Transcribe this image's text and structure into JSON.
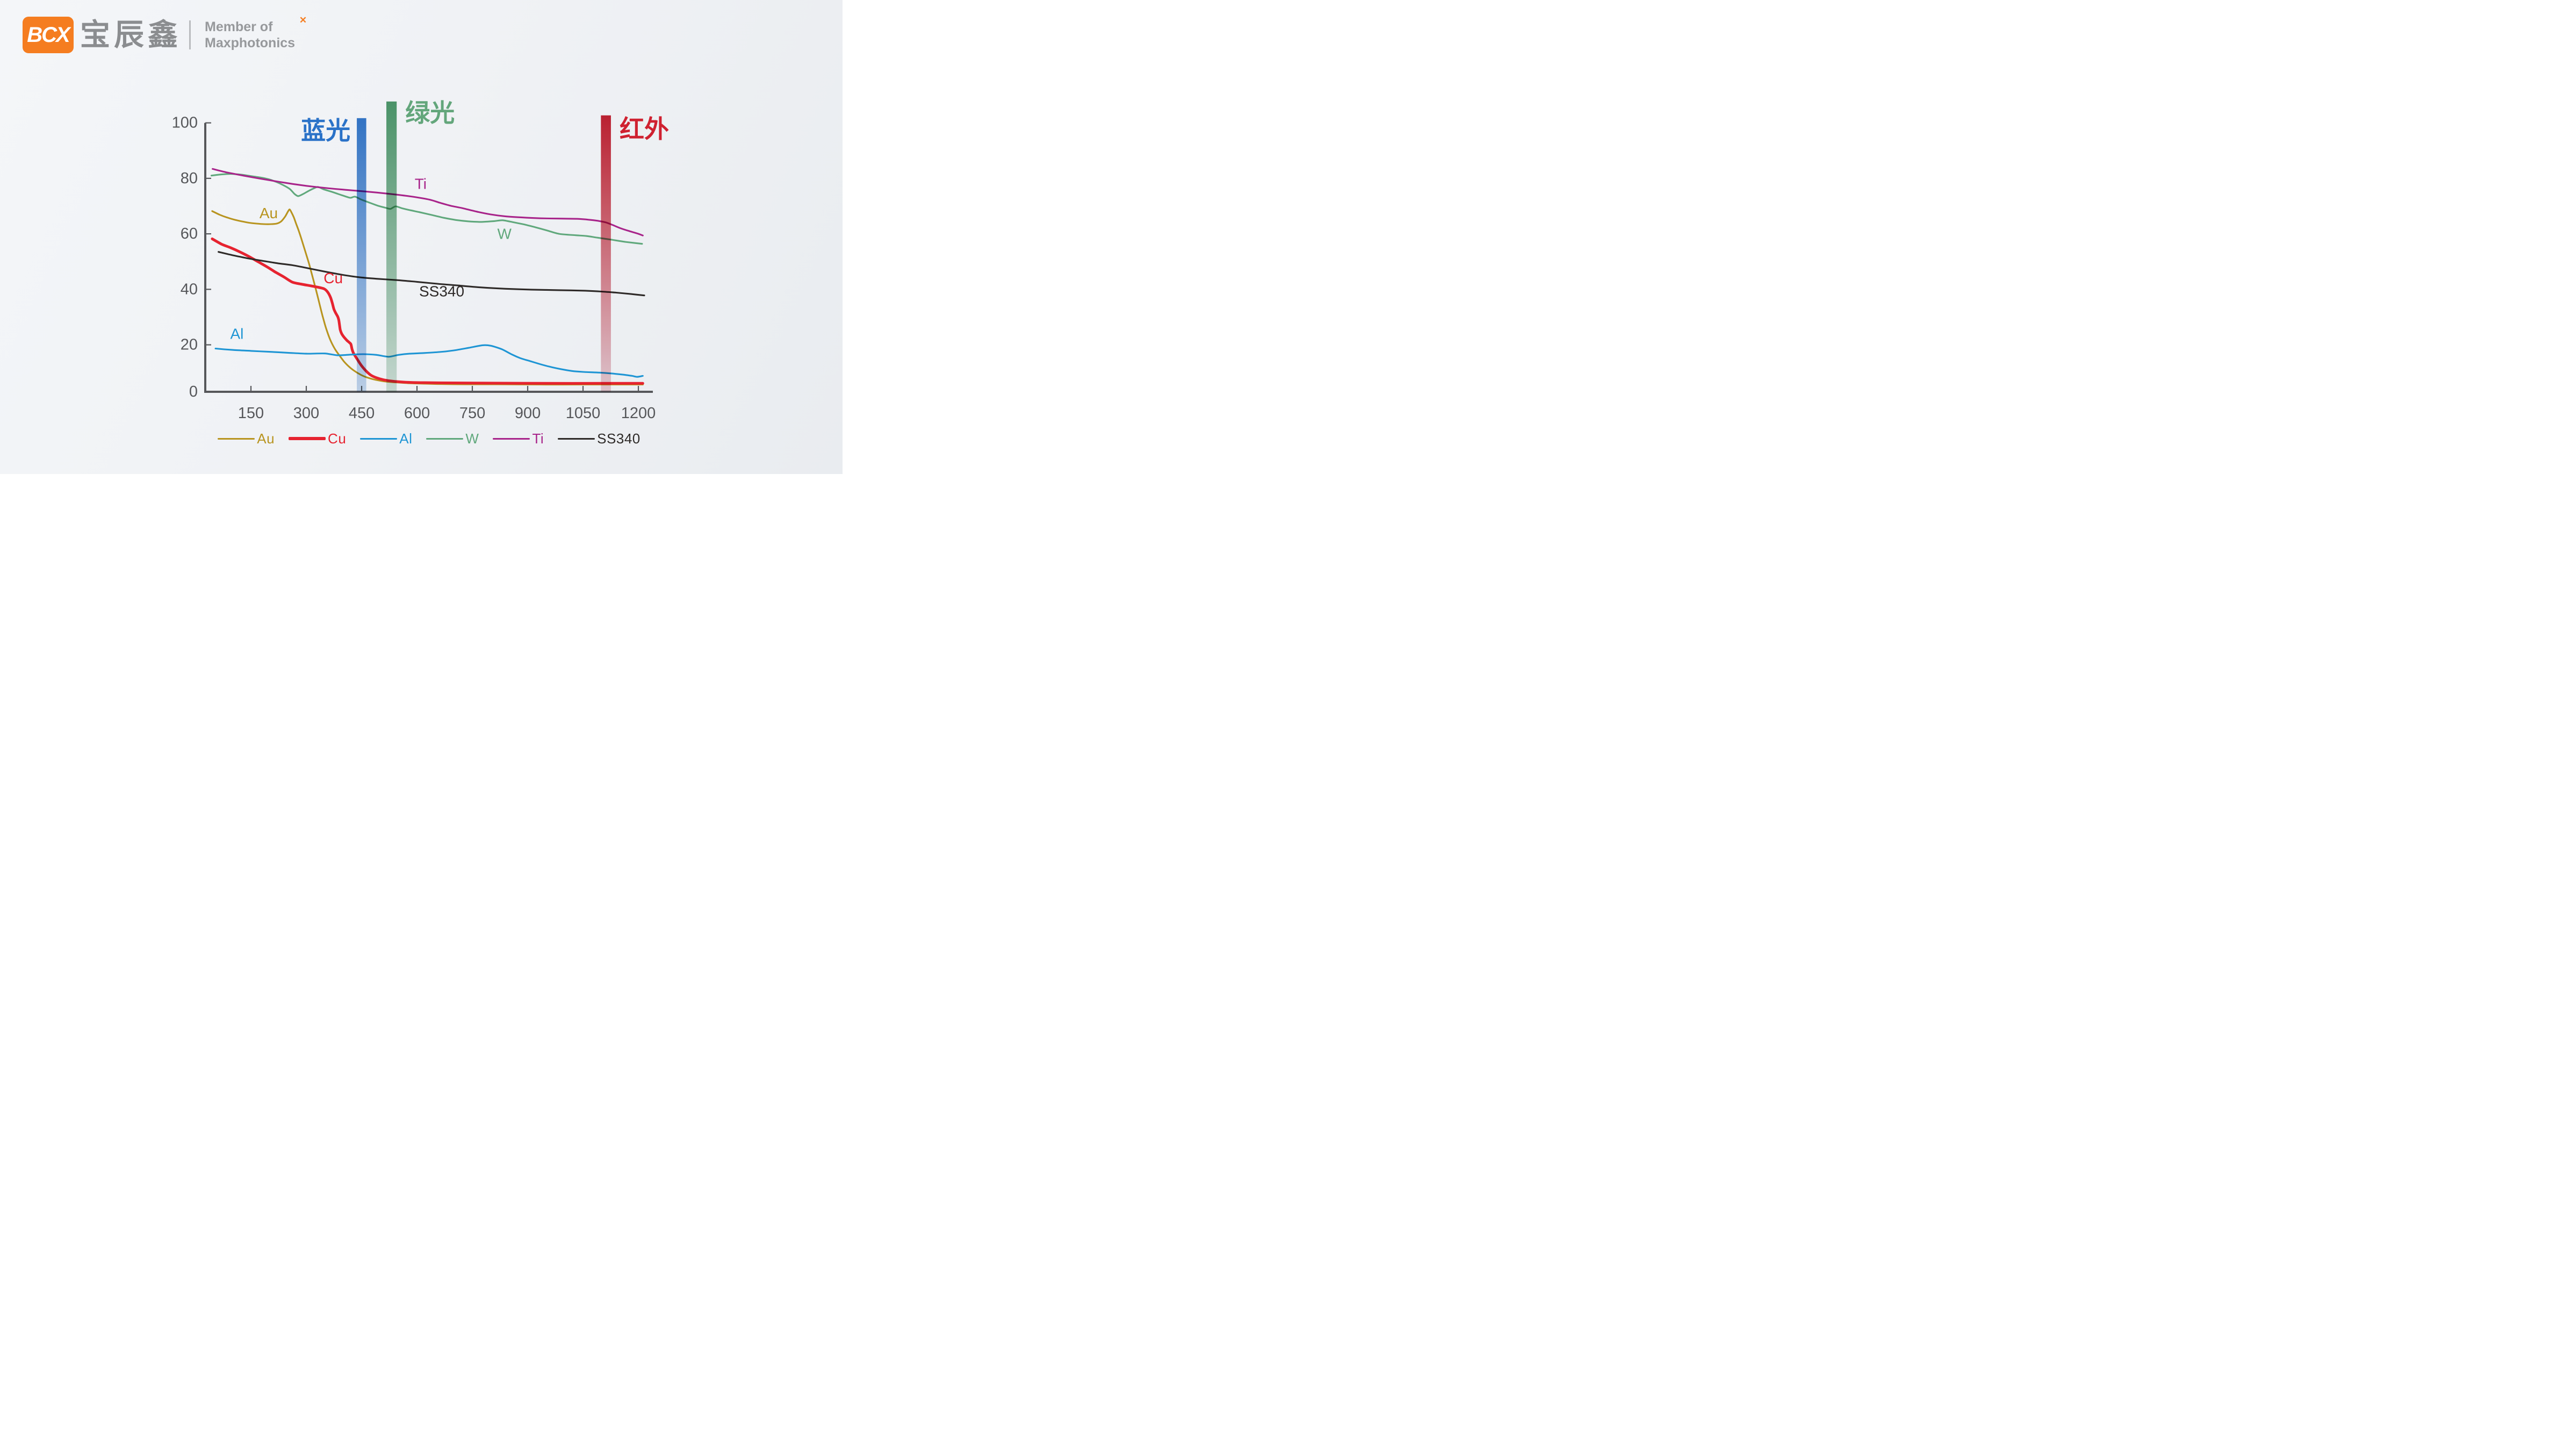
{
  "logo": {
    "bcx": "BCX",
    "company_cjk": "宝辰鑫",
    "member_of": "Member of",
    "member_company": "Maxphotonics",
    "x_mark": "✕",
    "orange": "#f57d20",
    "grey": "#97999c"
  },
  "chart_data": {
    "type": "line",
    "title": "",
    "xlabel": "",
    "ylabel": "",
    "xlim": [
      26,
      1240
    ],
    "ylim": [
      0,
      100
    ],
    "grid": false,
    "legend_position": "bottom",
    "axis_color": "#56575a",
    "tick_label_color": "#56575a",
    "x_ticks": [
      150,
      300,
      450,
      600,
      750,
      900,
      1050,
      1200
    ],
    "y_ticks": [
      0,
      20,
      40,
      60,
      80,
      100
    ],
    "bands": [
      {
        "name": "blue-laser",
        "label": "蓝光",
        "x0": 437,
        "x1": 462.5,
        "top_value": 101.7,
        "color_top": "#3579cb",
        "color_bottom": "#c6d9ef",
        "label_color": "#2a72c8",
        "label_side": "left",
        "label_y_value": 97.2
      },
      {
        "name": "green-laser",
        "label": "绿光",
        "x0": 517,
        "x1": 545,
        "top_value": 107.7,
        "color_top": "#4f9a6c",
        "color_bottom": "#d2e3d8",
        "label_color": "#63a67b",
        "label_side": "right",
        "label_y_value": 103.6
      },
      {
        "name": "infrared",
        "label": "红外",
        "x0": 1098.5,
        "x1": 1125.6,
        "top_value": 102.7,
        "color_top": "#c82333",
        "color_bottom": "#eed0d6",
        "label_color": "#cf2130",
        "label_side": "right",
        "label_y_value": 97.8
      }
    ],
    "series": [
      {
        "name": "Au",
        "color": "#b8941f",
        "width": 3.1,
        "label_at": [
          198,
          67.5
        ],
        "points": [
          [
            45,
            68.2
          ],
          [
            65,
            66.9
          ],
          [
            85,
            65.9
          ],
          [
            105,
            65.1
          ],
          [
            125,
            64.5
          ],
          [
            145,
            64.0
          ],
          [
            165,
            63.7
          ],
          [
            185,
            63.5
          ],
          [
            205,
            63.5
          ],
          [
            220,
            63.7
          ],
          [
            232,
            64.5
          ],
          [
            243,
            66.3
          ],
          [
            251,
            68.2
          ],
          [
            255,
            68.8
          ],
          [
            260,
            67.7
          ],
          [
            266,
            66.0
          ],
          [
            272,
            63.8
          ],
          [
            279,
            61.3
          ],
          [
            286,
            58.5
          ],
          [
            293,
            55.5
          ],
          [
            300,
            52.5
          ],
          [
            308,
            49.0
          ],
          [
            316,
            45.0
          ],
          [
            324,
            41.0
          ],
          [
            332,
            36.8
          ],
          [
            340,
            32.5
          ],
          [
            348,
            28.5
          ],
          [
            356,
            25.0
          ],
          [
            366,
            21.5
          ],
          [
            378,
            18.2
          ],
          [
            390,
            15.5
          ],
          [
            402,
            13.0
          ],
          [
            414,
            11.0
          ],
          [
            428,
            9.2
          ],
          [
            444,
            7.6
          ],
          [
            460,
            6.4
          ],
          [
            478,
            5.5
          ],
          [
            498,
            4.8
          ],
          [
            520,
            4.3
          ],
          [
            545,
            4.0
          ],
          [
            575,
            3.7
          ],
          [
            615,
            3.5
          ],
          [
            665,
            3.3
          ],
          [
            730,
            3.2
          ],
          [
            820,
            3.2
          ],
          [
            930,
            3.1
          ],
          [
            1050,
            3.1
          ],
          [
            1150,
            3.1
          ],
          [
            1212,
            3.1
          ]
        ]
      },
      {
        "name": "Cu",
        "color": "#e62330",
        "width": 5,
        "label_at": [
          373,
          44
        ],
        "points": [
          [
            45,
            58.2
          ],
          [
            70,
            56.3
          ],
          [
            95,
            55.0
          ],
          [
            120,
            53.5
          ],
          [
            145,
            51.8
          ],
          [
            170,
            49.9
          ],
          [
            195,
            48.0
          ],
          [
            215,
            46.3
          ],
          [
            240,
            44.4
          ],
          [
            262,
            42.6
          ],
          [
            285,
            41.9
          ],
          [
            310,
            41.3
          ],
          [
            330,
            40.8
          ],
          [
            348,
            40.2
          ],
          [
            358,
            39.0
          ],
          [
            366,
            37.0
          ],
          [
            371,
            34.8
          ],
          [
            375,
            32.8
          ],
          [
            380,
            31.4
          ],
          [
            385,
            30.2
          ],
          [
            388,
            29.0
          ],
          [
            390,
            27.2
          ],
          [
            392,
            25.4
          ],
          [
            396,
            24.0
          ],
          [
            402,
            22.8
          ],
          [
            410,
            21.6
          ],
          [
            417,
            20.8
          ],
          [
            421,
            20.2
          ],
          [
            424,
            18.2
          ],
          [
            428,
            16.5
          ],
          [
            433,
            15.2
          ],
          [
            439,
            13.7
          ],
          [
            445,
            12.2
          ],
          [
            452,
            10.7
          ],
          [
            462,
            8.9
          ],
          [
            475,
            7.1
          ],
          [
            490,
            6.0
          ],
          [
            510,
            5.1
          ],
          [
            535,
            4.5
          ],
          [
            570,
            4.1
          ],
          [
            620,
            3.9
          ],
          [
            700,
            3.8
          ],
          [
            800,
            3.7
          ],
          [
            950,
            3.6
          ],
          [
            1100,
            3.6
          ],
          [
            1212,
            3.6
          ]
        ]
      },
      {
        "name": "Al",
        "color": "#1e95d4",
        "width": 3.1,
        "label_at": [
          112,
          24
        ],
        "points": [
          [
            54,
            18.5
          ],
          [
            100,
            17.9
          ],
          [
            150,
            17.5
          ],
          [
            200,
            17.1
          ],
          [
            250,
            16.7
          ],
          [
            300,
            16.3
          ],
          [
            350,
            16.4
          ],
          [
            385,
            15.6
          ],
          [
            420,
            15.9
          ],
          [
            455,
            16.1
          ],
          [
            490,
            15.8
          ],
          [
            523,
            15.0
          ],
          [
            550,
            15.8
          ],
          [
            580,
            16.3
          ],
          [
            620,
            16.6
          ],
          [
            660,
            17.0
          ],
          [
            700,
            17.7
          ],
          [
            740,
            18.8
          ],
          [
            778,
            19.9
          ],
          [
            800,
            19.7
          ],
          [
            830,
            18.2
          ],
          [
            858,
            15.9
          ],
          [
            880,
            14.4
          ],
          [
            907,
            13.1
          ],
          [
            930,
            12.0
          ],
          [
            958,
            10.8
          ],
          [
            990,
            9.7
          ],
          [
            1020,
            8.9
          ],
          [
            1050,
            8.5
          ],
          [
            1095,
            8.2
          ],
          [
            1130,
            7.8
          ],
          [
            1160,
            7.3
          ],
          [
            1183,
            6.8
          ],
          [
            1197,
            6.4
          ],
          [
            1212,
            6.8
          ]
        ]
      },
      {
        "name": "W",
        "color": "#60a87c",
        "width": 3.1,
        "label_at": [
          837,
          60
        ],
        "points": [
          [
            43,
            81.0
          ],
          [
            70,
            81.4
          ],
          [
            95,
            81.6
          ],
          [
            125,
            81.3
          ],
          [
            150,
            80.8
          ],
          [
            180,
            80.2
          ],
          [
            200,
            79.6
          ],
          [
            217,
            78.8
          ],
          [
            237,
            77.6
          ],
          [
            255,
            76.2
          ],
          [
            268,
            74.4
          ],
          [
            278,
            73.6
          ],
          [
            292,
            74.4
          ],
          [
            308,
            75.6
          ],
          [
            322,
            76.5
          ],
          [
            332,
            76.9
          ],
          [
            348,
            76.0
          ],
          [
            368,
            75.2
          ],
          [
            388,
            74.3
          ],
          [
            408,
            73.4
          ],
          [
            420,
            73.0
          ],
          [
            432,
            73.4
          ],
          [
            450,
            72.3
          ],
          [
            472,
            71.2
          ],
          [
            495,
            70.1
          ],
          [
            515,
            69.4
          ],
          [
            528,
            69.0
          ],
          [
            542,
            69.9
          ],
          [
            560,
            69.2
          ],
          [
            582,
            68.5
          ],
          [
            607,
            67.8
          ],
          [
            640,
            66.8
          ],
          [
            672,
            65.8
          ],
          [
            705,
            65.0
          ],
          [
            740,
            64.5
          ],
          [
            775,
            64.3
          ],
          [
            810,
            64.6
          ],
          [
            832,
            64.9
          ],
          [
            860,
            64.2
          ],
          [
            890,
            63.4
          ],
          [
            920,
            62.4
          ],
          [
            950,
            61.3
          ],
          [
            985,
            60.0
          ],
          [
            1030,
            59.5
          ],
          [
            1060,
            59.2
          ],
          [
            1090,
            58.6
          ],
          [
            1126,
            57.9
          ],
          [
            1165,
            57.1
          ],
          [
            1210,
            56.4
          ]
        ]
      },
      {
        "name": "Ti",
        "color": "#a8248a",
        "width": 3.1,
        "label_at": [
          610,
          78
        ],
        "points": [
          [
            46,
            83.4
          ],
          [
            86,
            82.1
          ],
          [
            133,
            80.9
          ],
          [
            179,
            79.8
          ],
          [
            229,
            78.7
          ],
          [
            262,
            78.0
          ],
          [
            300,
            77.3
          ],
          [
            340,
            76.7
          ],
          [
            378,
            76.2
          ],
          [
            430,
            75.6
          ],
          [
            490,
            74.9
          ],
          [
            540,
            74.2
          ],
          [
            582,
            73.5
          ],
          [
            635,
            72.3
          ],
          [
            662,
            71.2
          ],
          [
            692,
            70.1
          ],
          [
            725,
            69.2
          ],
          [
            762,
            68.0
          ],
          [
            800,
            67.0
          ],
          [
            840,
            66.3
          ],
          [
            885,
            65.9
          ],
          [
            935,
            65.6
          ],
          [
            985,
            65.5
          ],
          [
            1035,
            65.4
          ],
          [
            1065,
            65.1
          ],
          [
            1090,
            64.7
          ],
          [
            1112,
            64.1
          ],
          [
            1130,
            63.2
          ],
          [
            1152,
            62.0
          ],
          [
            1175,
            61.0
          ],
          [
            1198,
            60.1
          ],
          [
            1212,
            59.4
          ]
        ]
      },
      {
        "name": "SS340",
        "color": "#2e2a28",
        "width": 3.1,
        "label_at": [
          667,
          39.3
        ],
        "points": [
          [
            62,
            53.5
          ],
          [
            100,
            52.3
          ],
          [
            140,
            51.2
          ],
          [
            180,
            50.3
          ],
          [
            222,
            49.4
          ],
          [
            262,
            48.7
          ],
          [
            305,
            47.6
          ],
          [
            350,
            46.4
          ],
          [
            395,
            45.3
          ],
          [
            440,
            44.4
          ],
          [
            490,
            43.8
          ],
          [
            548,
            43.3
          ],
          [
            600,
            42.7
          ],
          [
            655,
            42.0
          ],
          [
            710,
            41.4
          ],
          [
            772,
            40.7
          ],
          [
            840,
            40.2
          ],
          [
            910,
            39.9
          ],
          [
            985,
            39.7
          ],
          [
            1056,
            39.5
          ],
          [
            1100,
            39.2
          ],
          [
            1140,
            38.8
          ],
          [
            1180,
            38.3
          ],
          [
            1216,
            37.8
          ]
        ]
      }
    ]
  }
}
